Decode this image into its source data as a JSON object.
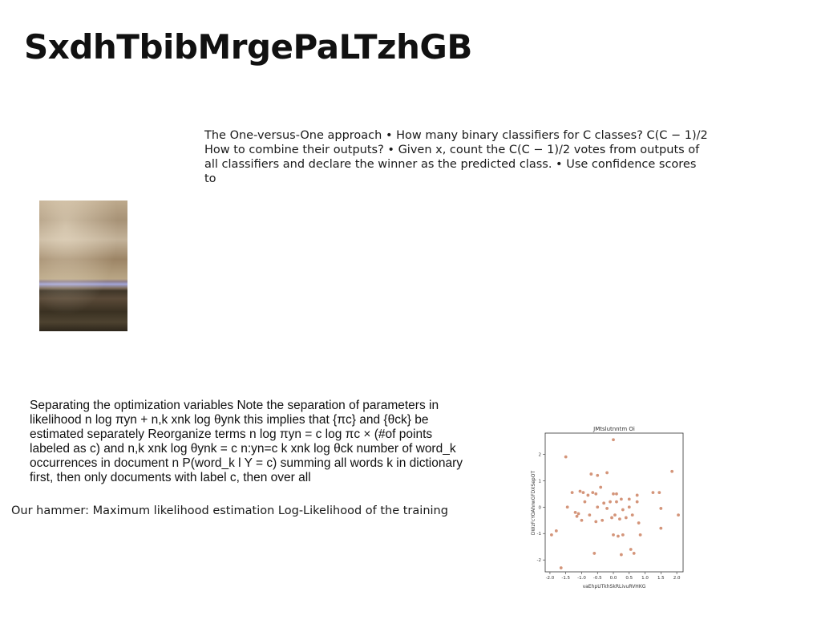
{
  "title": "SxdhTbibMrgePaLTzhGB",
  "paragraph_one_vs_one": "The One-versus-One approach • How many binary classifiers for C classes? C(C − 1)/2 How to combine their outputs? • Given x, count the C(C − 1)/2 votes from outputs of all classifiers and declare the winner as the predicted class. • Use confidence scores to",
  "paragraph_optimization": "Separating the optimization variables Note the separation of parameters in likelihood  n log πyn +  n,k xnk log θynk this implies that {πc} and {θck} be estimated separately Reorganize terms  n log πyn =  c log πc × (#of points labeled as c) and  n,k xnk log θynk =  c  n:yn=c  k xnk log θck number of word_k occurrences in document n P(word_k l Y = c) summing all words k in dictionary first, then only documents with label c, then over all",
  "paragraph_hammer": "Our hammer: Maximum likelihood estimation Log-Likelihood of the training",
  "colors": {
    "point": "#d4957a",
    "axes": "#333333"
  },
  "chart_data": {
    "type": "scatter",
    "title": "JMtslutnntm Oi",
    "xlabel": "vaEhpUTkhSkRLivuRVHKG",
    "ylabel": "DWzFcYOAhrwGFDXSepOT",
    "xlim": [
      -2.15,
      2.2
    ],
    "ylim": [
      -2.45,
      2.8
    ],
    "xticks": [
      "-2.0",
      "-1.5",
      "-1.0",
      "-0.5",
      "0.0",
      "0.5",
      "1.0",
      "1.5",
      "2.0"
    ],
    "yticks": [
      "2",
      "1",
      "0",
      "-1",
      "-2"
    ],
    "grid": false,
    "points": [
      [
        0.0,
        2.55
      ],
      [
        -1.5,
        1.9
      ],
      [
        1.85,
        1.35
      ],
      [
        -0.7,
        1.25
      ],
      [
        -0.5,
        1.2
      ],
      [
        -0.2,
        1.3
      ],
      [
        -0.4,
        0.75
      ],
      [
        -1.3,
        0.55
      ],
      [
        -1.05,
        0.6
      ],
      [
        -0.95,
        0.55
      ],
      [
        -0.65,
        0.55
      ],
      [
        -0.55,
        0.5
      ],
      [
        -0.8,
        0.45
      ],
      [
        0.0,
        0.5
      ],
      [
        0.1,
        0.5
      ],
      [
        0.25,
        0.3
      ],
      [
        0.5,
        0.3
      ],
      [
        0.75,
        0.45
      ],
      [
        1.25,
        0.55
      ],
      [
        1.45,
        0.55
      ],
      [
        -0.9,
        0.2
      ],
      [
        -0.5,
        0.0
      ],
      [
        -0.3,
        0.15
      ],
      [
        -0.2,
        -0.05
      ],
      [
        -0.1,
        0.2
      ],
      [
        0.1,
        0.2
      ],
      [
        0.3,
        -0.1
      ],
      [
        0.5,
        0.0
      ],
      [
        0.75,
        0.2
      ],
      [
        1.5,
        -0.05
      ],
      [
        -1.45,
        0.0
      ],
      [
        -1.2,
        -0.2
      ],
      [
        -1.15,
        -0.35
      ],
      [
        -1.1,
        -0.25
      ],
      [
        -0.75,
        -0.3
      ],
      [
        -1.0,
        -0.5
      ],
      [
        -0.55,
        -0.55
      ],
      [
        -0.35,
        -0.5
      ],
      [
        -0.05,
        -0.4
      ],
      [
        0.05,
        -0.3
      ],
      [
        0.2,
        -0.45
      ],
      [
        0.4,
        -0.4
      ],
      [
        0.6,
        -0.3
      ],
      [
        0.8,
        -0.6
      ],
      [
        1.5,
        -0.8
      ],
      [
        0.0,
        -1.05
      ],
      [
        0.15,
        -1.1
      ],
      [
        0.3,
        -1.05
      ],
      [
        0.85,
        -1.05
      ],
      [
        -1.95,
        -1.05
      ],
      [
        -1.8,
        -0.9
      ],
      [
        -0.6,
        -1.75
      ],
      [
        0.25,
        -1.8
      ],
      [
        0.55,
        -1.6
      ],
      [
        0.65,
        -1.75
      ],
      [
        -1.65,
        -2.3
      ],
      [
        2.05,
        -0.3
      ]
    ]
  }
}
